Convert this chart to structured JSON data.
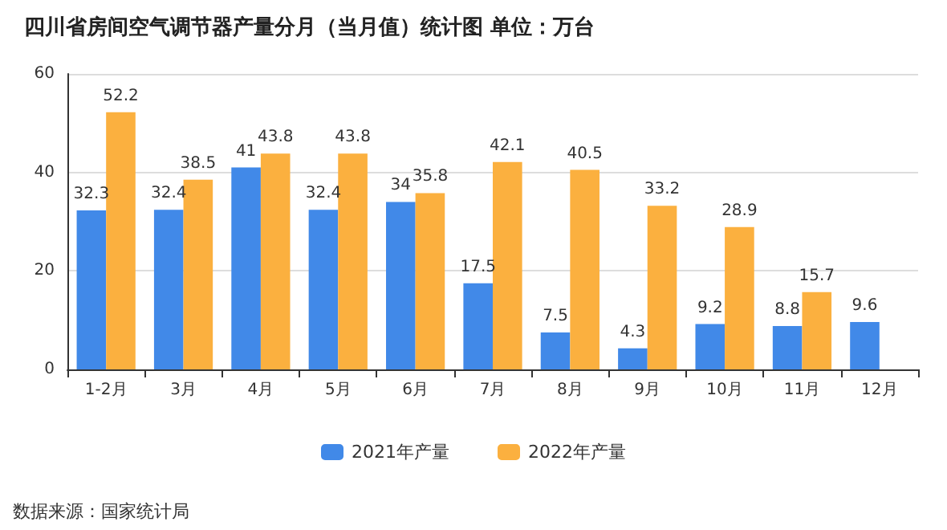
{
  "chart_data": {
    "type": "bar",
    "title": "四川省房间空气调节器产量分月（当月值）统计图 单位：万台",
    "categories": [
      "1-2月",
      "3月",
      "4月",
      "5月",
      "6月",
      "7月",
      "8月",
      "9月",
      "10月",
      "11月",
      "12月"
    ],
    "series": [
      {
        "name": "2021年产量",
        "color": "#4189e8",
        "values": [
          32.3,
          32.4,
          41,
          32.4,
          34,
          17.5,
          7.5,
          4.3,
          9.2,
          8.8,
          9.6
        ]
      },
      {
        "name": "2022年产量",
        "color": "#fbb03f",
        "values": [
          52.2,
          38.5,
          43.8,
          43.8,
          35.8,
          42.1,
          40.5,
          33.2,
          28.9,
          15.7,
          null
        ]
      }
    ],
    "ylim": [
      0,
      60
    ],
    "yticks": [
      0,
      20,
      40,
      60
    ],
    "grid": "y",
    "legend": "bottom",
    "data_labels": true,
    "annotations": [
      "数据来源：国家统计局"
    ]
  }
}
